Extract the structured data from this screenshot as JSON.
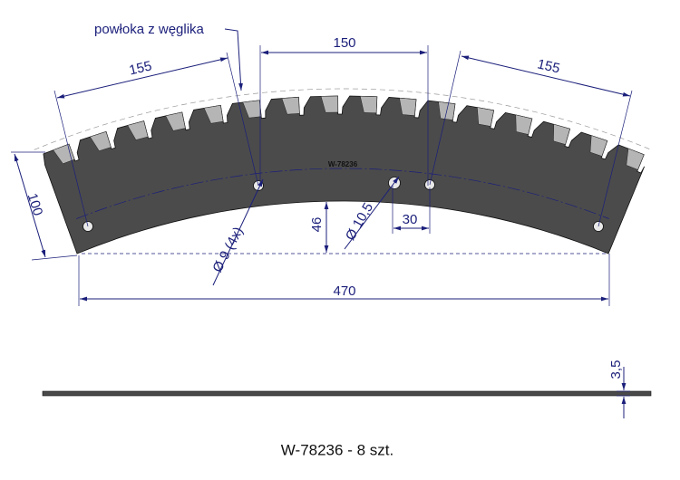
{
  "labels": {
    "coating": "powłoka z węglika",
    "part_marking": "W-78236",
    "caption": "W-78236 - 8 szt."
  },
  "dimensions": {
    "arc_left": "155",
    "center": "150",
    "arc_right": "155",
    "height": "100",
    "inner_offset": "46",
    "hole_large": "Ø 10,5",
    "hole_spacing": "30",
    "hole_small": "Ø 9 (4x)",
    "overall_width": "470",
    "thickness": "3,5"
  }
}
